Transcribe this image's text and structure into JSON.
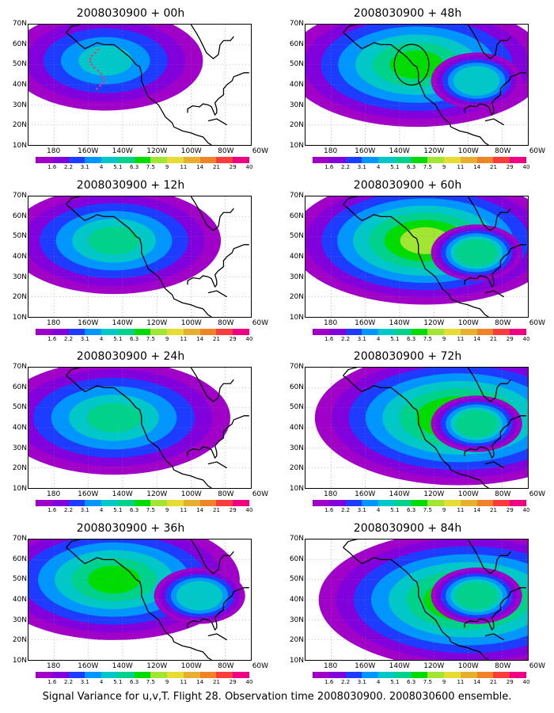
{
  "panels": [
    {
      "id": "p00",
      "title": "2008030900 + 00h",
      "intensity": 0.35,
      "center": [
        145,
        52
      ],
      "sample_track": true,
      "target_circle": false
    },
    {
      "id": "p48",
      "title": "2008030900 + 48h",
      "intensity": 0.7,
      "center": [
        125,
        50
      ],
      "sample_track": false,
      "target_circle": true
    },
    {
      "id": "p12",
      "title": "2008030900 + 12h",
      "intensity": 0.45,
      "center": [
        140,
        48
      ],
      "sample_track": false,
      "target_circle": false
    },
    {
      "id": "p60",
      "title": "2008030900 + 60h",
      "intensity": 0.75,
      "center": [
        120,
        48
      ],
      "sample_track": false,
      "target_circle": false
    },
    {
      "id": "p24",
      "title": "2008030900 + 24h",
      "intensity": 0.55,
      "center": [
        140,
        45
      ],
      "sample_track": false,
      "target_circle": false
    },
    {
      "id": "p72",
      "title": "2008030900 + 72h",
      "intensity": 0.85,
      "center": [
        100,
        45
      ],
      "sample_track": false,
      "target_circle": false
    },
    {
      "id": "p36",
      "title": "2008030900 + 36h",
      "intensity": 0.65,
      "center": [
        140,
        50
      ],
      "sample_track": false,
      "target_circle": false
    },
    {
      "id": "p84",
      "title": "2008030900 + 84h",
      "intensity": 0.9,
      "center": [
        95,
        40
      ],
      "sample_track": false,
      "target_circle": false
    }
  ],
  "lat_labels": [
    "70N",
    "60N",
    "50N",
    "40N",
    "30N",
    "20N",
    "10N"
  ],
  "lon_labels": [
    "180",
    "160W",
    "140W",
    "120W",
    "100W",
    "80W",
    "60W"
  ],
  "colorbar": {
    "labels": [
      "1.6",
      "2.2",
      "3.1",
      "4",
      "5.1",
      "6.3",
      "7.5",
      "9",
      "11",
      "14",
      "21",
      "29",
      "40"
    ],
    "colors": [
      "#a000c8",
      "#8200dc",
      "#1e3cff",
      "#0096ff",
      "#00c8c8",
      "#00d28c",
      "#00dc00",
      "#a0e632",
      "#e6dc32",
      "#e6af2d",
      "#f08228",
      "#fa3c3c",
      "#f00082"
    ]
  },
  "footer": "Signal Variance for u,v,T. Flight 28. Observation time 2008030900. 2008030600 ensemble."
}
